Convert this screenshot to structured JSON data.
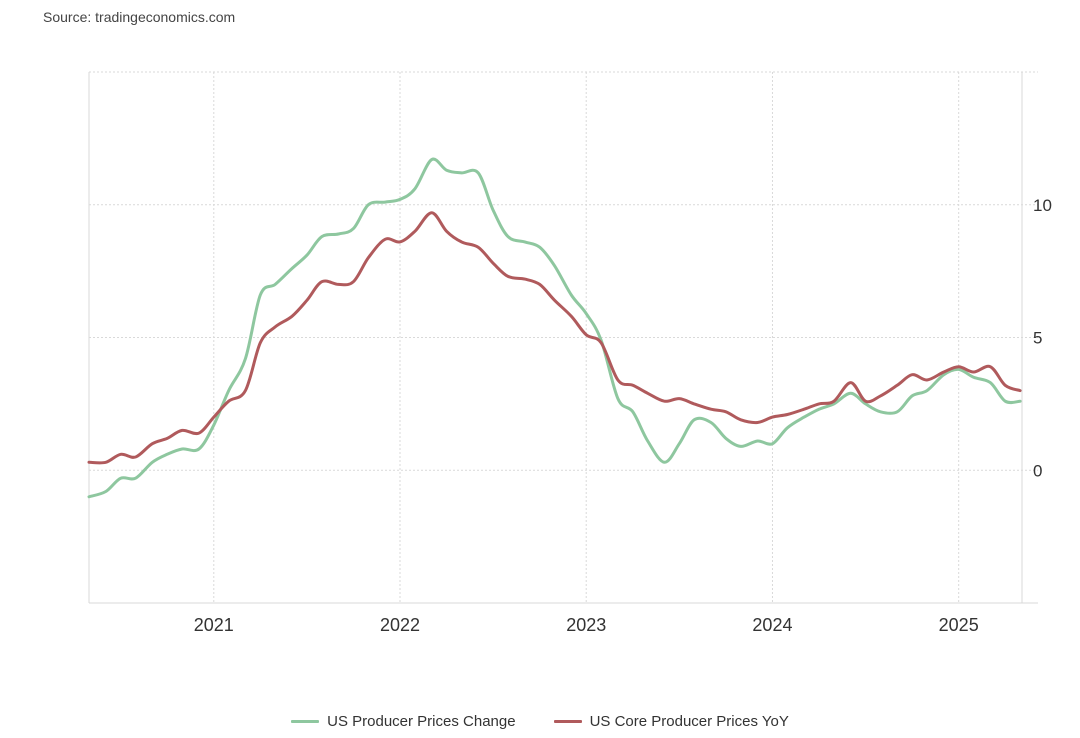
{
  "source": "Source: tradingeconomics.com",
  "chart_data": {
    "type": "line",
    "xlim": [
      2020.33,
      2025.34
    ],
    "ylim": [
      -5,
      15
    ],
    "y_ticks": [
      0,
      5,
      10
    ],
    "x_ticks": [
      2021,
      2022,
      2023,
      2024,
      2025
    ],
    "grid": true,
    "legend_position": "bottom",
    "series": [
      {
        "name": "US Producer Prices Change",
        "color": "#8ec79f",
        "points": [
          [
            2020.33,
            -1.0
          ],
          [
            2020.42,
            -0.8
          ],
          [
            2020.5,
            -0.3
          ],
          [
            2020.58,
            -0.3
          ],
          [
            2020.67,
            0.3
          ],
          [
            2020.75,
            0.6
          ],
          [
            2020.83,
            0.8
          ],
          [
            2020.92,
            0.8
          ],
          [
            2021.0,
            1.7
          ],
          [
            2021.08,
            3.0
          ],
          [
            2021.17,
            4.2
          ],
          [
            2021.25,
            6.6
          ],
          [
            2021.33,
            7.0
          ],
          [
            2021.42,
            7.6
          ],
          [
            2021.5,
            8.1
          ],
          [
            2021.58,
            8.8
          ],
          [
            2021.67,
            8.9
          ],
          [
            2021.75,
            9.1
          ],
          [
            2021.83,
            10.0
          ],
          [
            2021.92,
            10.1
          ],
          [
            2022.0,
            10.2
          ],
          [
            2022.08,
            10.6
          ],
          [
            2022.17,
            11.7
          ],
          [
            2022.25,
            11.3
          ],
          [
            2022.33,
            11.2
          ],
          [
            2022.42,
            11.2
          ],
          [
            2022.5,
            9.8
          ],
          [
            2022.58,
            8.8
          ],
          [
            2022.67,
            8.6
          ],
          [
            2022.75,
            8.4
          ],
          [
            2022.83,
            7.7
          ],
          [
            2022.92,
            6.6
          ],
          [
            2023.0,
            5.9
          ],
          [
            2023.08,
            4.9
          ],
          [
            2023.17,
            2.7
          ],
          [
            2023.25,
            2.2
          ],
          [
            2023.33,
            1.1
          ],
          [
            2023.42,
            0.3
          ],
          [
            2023.5,
            1.0
          ],
          [
            2023.58,
            1.9
          ],
          [
            2023.67,
            1.8
          ],
          [
            2023.75,
            1.2
          ],
          [
            2023.83,
            0.9
          ],
          [
            2023.92,
            1.1
          ],
          [
            2024.0,
            1.0
          ],
          [
            2024.08,
            1.6
          ],
          [
            2024.17,
            2.0
          ],
          [
            2024.25,
            2.3
          ],
          [
            2024.33,
            2.5
          ],
          [
            2024.42,
            2.9
          ],
          [
            2024.5,
            2.5
          ],
          [
            2024.58,
            2.2
          ],
          [
            2024.67,
            2.2
          ],
          [
            2024.75,
            2.8
          ],
          [
            2024.83,
            3.0
          ],
          [
            2024.92,
            3.6
          ],
          [
            2025.0,
            3.8
          ],
          [
            2025.08,
            3.5
          ],
          [
            2025.17,
            3.3
          ],
          [
            2025.25,
            2.6
          ],
          [
            2025.33,
            2.6
          ]
        ]
      },
      {
        "name": "US Core Producer Prices YoY",
        "color": "#b05a5c",
        "points": [
          [
            2020.33,
            0.3
          ],
          [
            2020.42,
            0.3
          ],
          [
            2020.5,
            0.6
          ],
          [
            2020.58,
            0.5
          ],
          [
            2020.67,
            1.0
          ],
          [
            2020.75,
            1.2
          ],
          [
            2020.83,
            1.5
          ],
          [
            2020.92,
            1.4
          ],
          [
            2021.0,
            2.0
          ],
          [
            2021.08,
            2.6
          ],
          [
            2021.17,
            3.0
          ],
          [
            2021.25,
            4.8
          ],
          [
            2021.33,
            5.4
          ],
          [
            2021.42,
            5.8
          ],
          [
            2021.5,
            6.4
          ],
          [
            2021.58,
            7.1
          ],
          [
            2021.67,
            7.0
          ],
          [
            2021.75,
            7.1
          ],
          [
            2021.83,
            8.0
          ],
          [
            2021.92,
            8.7
          ],
          [
            2022.0,
            8.6
          ],
          [
            2022.08,
            9.0
          ],
          [
            2022.17,
            9.7
          ],
          [
            2022.25,
            9.0
          ],
          [
            2022.33,
            8.6
          ],
          [
            2022.42,
            8.4
          ],
          [
            2022.5,
            7.8
          ],
          [
            2022.58,
            7.3
          ],
          [
            2022.67,
            7.2
          ],
          [
            2022.75,
            7.0
          ],
          [
            2022.83,
            6.4
          ],
          [
            2022.92,
            5.8
          ],
          [
            2023.0,
            5.1
          ],
          [
            2023.08,
            4.8
          ],
          [
            2023.17,
            3.4
          ],
          [
            2023.25,
            3.2
          ],
          [
            2023.33,
            2.9
          ],
          [
            2023.42,
            2.6
          ],
          [
            2023.5,
            2.7
          ],
          [
            2023.58,
            2.5
          ],
          [
            2023.67,
            2.3
          ],
          [
            2023.75,
            2.2
          ],
          [
            2023.83,
            1.9
          ],
          [
            2023.92,
            1.8
          ],
          [
            2024.0,
            2.0
          ],
          [
            2024.08,
            2.1
          ],
          [
            2024.17,
            2.3
          ],
          [
            2024.25,
            2.5
          ],
          [
            2024.33,
            2.6
          ],
          [
            2024.42,
            3.3
          ],
          [
            2024.5,
            2.6
          ],
          [
            2024.58,
            2.8
          ],
          [
            2024.67,
            3.2
          ],
          [
            2024.75,
            3.6
          ],
          [
            2024.83,
            3.4
          ],
          [
            2024.92,
            3.7
          ],
          [
            2025.0,
            3.9
          ],
          [
            2025.08,
            3.7
          ],
          [
            2025.17,
            3.9
          ],
          [
            2025.25,
            3.2
          ],
          [
            2025.33,
            3.0
          ]
        ]
      }
    ]
  }
}
